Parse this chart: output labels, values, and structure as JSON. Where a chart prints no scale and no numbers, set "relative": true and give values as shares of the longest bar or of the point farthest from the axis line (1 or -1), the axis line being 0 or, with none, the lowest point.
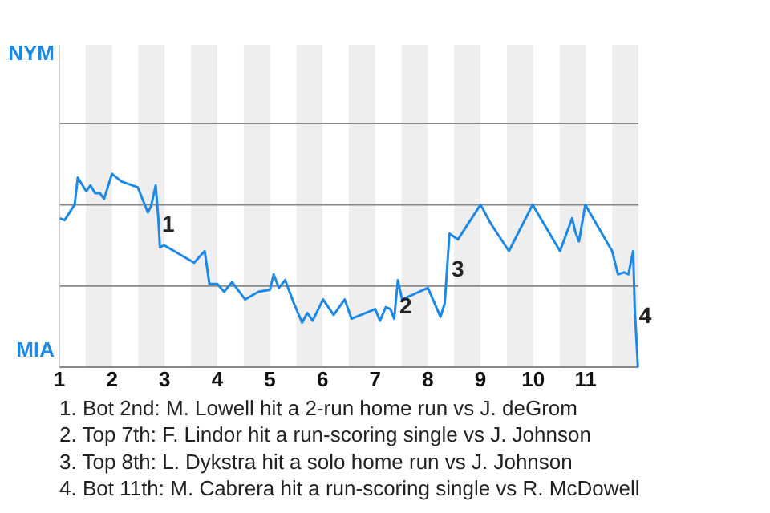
{
  "chart_data": {
    "type": "line",
    "x": [
      1.01,
      1.1,
      1.29,
      1.35,
      1.51,
      1.59,
      1.68,
      1.77,
      1.85,
      2.0,
      2.18,
      2.49,
      2.68,
      2.74,
      2.83,
      2.88,
      2.91,
      2.99,
      3.56,
      3.76,
      3.85,
      4.0,
      4.13,
      4.28,
      4.53,
      4.78,
      5.0,
      5.07,
      5.17,
      5.29,
      5.44,
      5.61,
      5.71,
      5.81,
      6.01,
      6.21,
      6.42,
      6.55,
      7.0,
      7.09,
      7.2,
      7.29,
      7.36,
      7.43,
      7.51,
      8.0,
      8.24,
      8.32,
      8.41,
      8.57,
      9.0,
      9.2,
      9.54,
      9.99,
      10.51,
      10.74,
      10.8,
      10.87,
      10.99,
      11.5,
      11.61,
      11.73,
      11.81,
      11.9,
      11.93,
      11.99
    ],
    "series": [
      {
        "color": "#1e88e5",
        "values": [
          0.77,
          0.76,
          0.84,
          0.98,
          0.91,
          0.94,
          0.9,
          0.9,
          0.87,
          1,
          0.96,
          0.93,
          0.8,
          0.83,
          0.94,
          0.77,
          0.62,
          0.63,
          0.54,
          0.6,
          0.43,
          0.43,
          0.39,
          0.44,
          0.35,
          0.39,
          0.4,
          0.48,
          0.41,
          0.45,
          0.34,
          0.23,
          0.28,
          0.24,
          0.35,
          0.27,
          0.35,
          0.25,
          0.3,
          0.24,
          0.31,
          0.3,
          0.25,
          0.45,
          0.35,
          0.41,
          0.26,
          0.33,
          0.69,
          0.66,
          0.84,
          0.74,
          0.6,
          0.84,
          0.6,
          0.77,
          0.7,
          0.65,
          0.84,
          0.6,
          0.48,
          0.49,
          0.48,
          0.6,
          0.3,
          0
        ]
      }
    ],
    "xlim": [
      1,
      12
    ],
    "xticks": [
      1,
      2,
      3,
      4,
      5,
      6,
      7,
      8,
      9,
      10,
      11
    ],
    "relative": true,
    "ref_lines": [
      {
        "axis": "y",
        "value": 0.42,
        "color": "#888888"
      },
      {
        "axis": "y",
        "value": 0.84,
        "color": "#888888"
      },
      {
        "axis": "y",
        "value": 1.26,
        "color": "#888888"
      }
    ],
    "marker": "none",
    "line_style": "solid",
    "bands": [
      {
        "axis": "x",
        "from": 1.5,
        "to": 2,
        "color": "#eeeeee"
      },
      {
        "axis": "x",
        "from": 2.5,
        "to": 3,
        "color": "#eeeeee"
      },
      {
        "axis": "x",
        "from": 3.5,
        "to": 4,
        "color": "#eeeeee"
      },
      {
        "axis": "x",
        "from": 4.5,
        "to": 5,
        "color": "#eeeeee"
      },
      {
        "axis": "x",
        "from": 5.5,
        "to": 6,
        "color": "#eeeeee"
      },
      {
        "axis": "x",
        "from": 6.5,
        "to": 7,
        "color": "#eeeeee"
      },
      {
        "axis": "x",
        "from": 7.5,
        "to": 8,
        "color": "#eeeeee"
      },
      {
        "axis": "x",
        "from": 8.5,
        "to": 9,
        "color": "#eeeeee"
      },
      {
        "axis": "x",
        "from": 9.5,
        "to": 10,
        "color": "#eeeeee"
      },
      {
        "axis": "x",
        "from": 10.5,
        "to": 11,
        "color": "#eeeeee"
      },
      {
        "axis": "x",
        "from": 11.5,
        "to": 12,
        "color": "#eeeeee"
      }
    ],
    "annotations": [
      {
        "text": "1",
        "x": 2.89,
        "y": 0.73
      },
      {
        "text": "2",
        "x": 7.4,
        "y": 0.31
      },
      {
        "text": "3",
        "x": 8.39,
        "y": 0.5
      },
      {
        "text": "4",
        "x": 11.95,
        "y": 0.26
      },
      "NYM",
      "MIA",
      "1. Bot 2nd: M. Lowell hit a 2-run home run vs J. deGrom",
      "2. Top 7th: F. Lindor hit a run-scoring single vs J. Johnson",
      "3. Top 8th: L. Dykstra hit a solo home run vs J. Johnson",
      "4. Bot 11th: M. Cabrera hit a run-scoring single vs R. McDowell"
    ]
  }
}
